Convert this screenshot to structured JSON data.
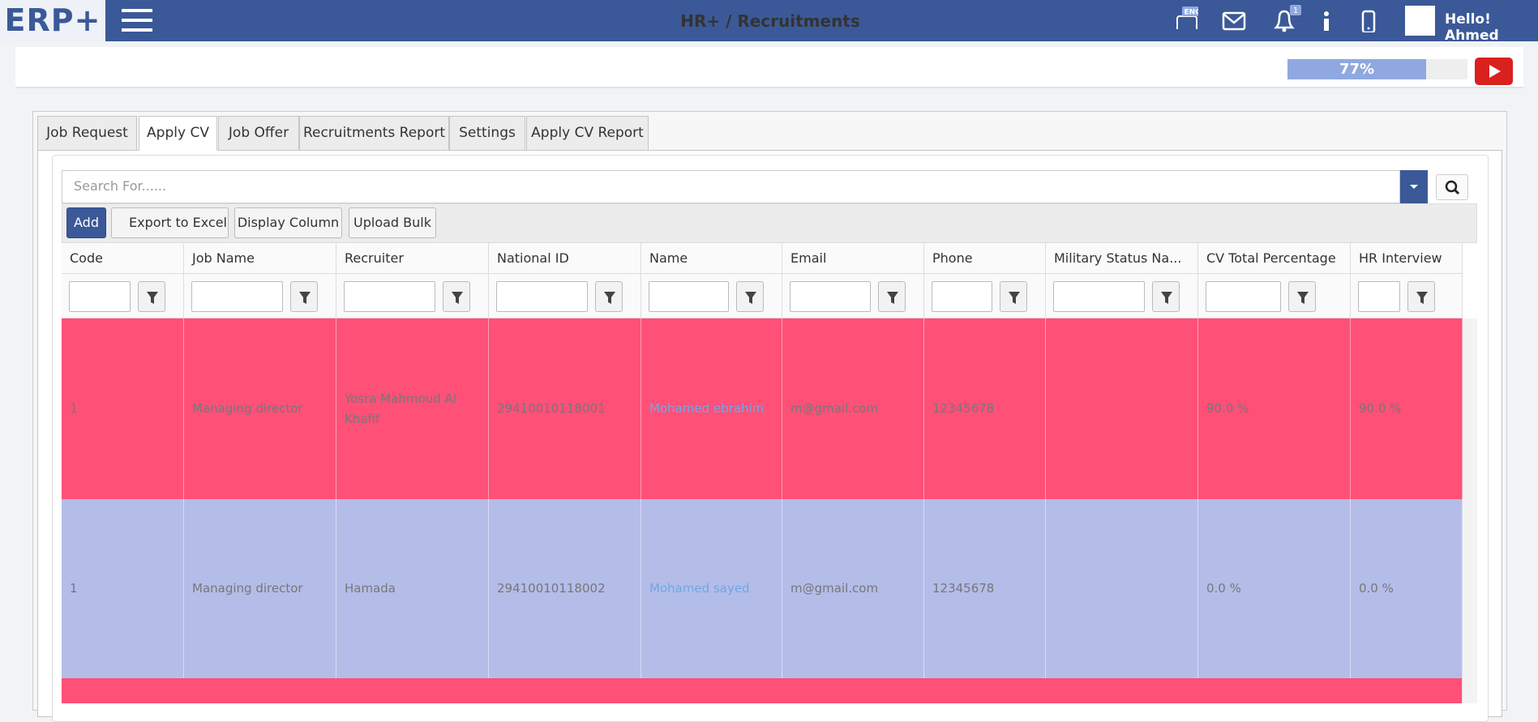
{
  "header": {
    "logo": "ERP+",
    "language_badge": "ENG",
    "notification_count": "1",
    "greeting": "Hello! Ahmed"
  },
  "page": {
    "title": "HR+ / Recruitments",
    "progress": {
      "value": 77,
      "label": "77%"
    }
  },
  "tabs": [
    "Job Request",
    "Apply CV",
    "Job Offer",
    "Recruitments Report",
    "Settings",
    "Apply CV Report"
  ],
  "active_tab": 1,
  "search": {
    "placeholder": "Search For......"
  },
  "toolbar": [
    "Add",
    "Export to Excel",
    "Display Column",
    "Upload Bulk"
  ],
  "table": {
    "columns": [
      "Code",
      "Job Name",
      "Recruiter",
      "National ID",
      "Name",
      "Email",
      "Phone",
      "Military Status Na...",
      "CV Total Percentage",
      "HR Interview"
    ],
    "rows": [
      [
        "1",
        "Managing director",
        "Yosra Mahmoud Al Khafif",
        "29410010118001",
        "Mohamed ebrahim",
        "m@gmail.com",
        "12345678",
        null,
        "90.0 %",
        "90.0 %"
      ],
      [
        "1",
        "Managing director",
        "Hamada",
        "29410010118002",
        "Mohamed sayed",
        "m@gmail.com",
        "12345678",
        null,
        "0.0 %",
        "0.0 %"
      ]
    ]
  }
}
